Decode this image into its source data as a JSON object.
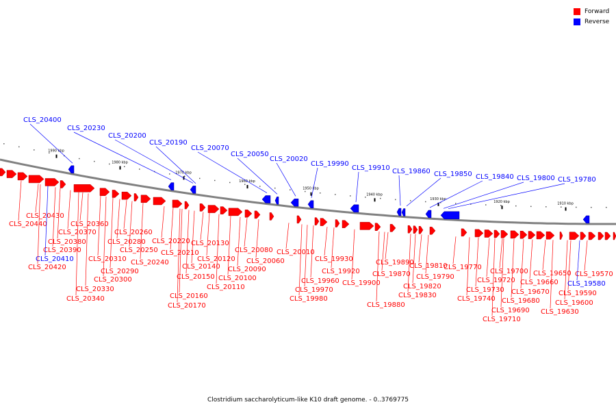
{
  "legend": {
    "forward": "Forward",
    "reverse": "Reverse"
  },
  "colors": {
    "forward": "#ff0000",
    "reverse": "#0000ff",
    "backbone": "#808080",
    "label_line_fwd": "#ff0000",
    "label_line_rev": "#0000ff"
  },
  "caption": "Clostridium saccharolyticum-like K10 draft genome. - 0..3769775",
  "scale": {
    "ticks": [
      "1990 kbp",
      "1980 kbp",
      "1970 kbp",
      "1960 kbp",
      "1950 kbp",
      "1940 kbp",
      "1930 kbp",
      "1920 kbp",
      "1910 kbp"
    ]
  },
  "reverse_labels": [
    "CLS_20400",
    "CLS_20230",
    "CLS_20200",
    "CLS_20190",
    "CLS_20070",
    "CLS_20050",
    "CLS_20020",
    "CLS_19990",
    "CLS_19910",
    "CLS_19860",
    "CLS_19850",
    "CLS_19840",
    "CLS_19800",
    "CLS_19780"
  ],
  "forward_labels": [
    "CLS_20430",
    "CLS_20440",
    "CLS_20360",
    "CLS_20370",
    "CLS_20380",
    "CLS_20390",
    "CLS_20410",
    "CLS_20420",
    "CLS_20310",
    "CLS_20290",
    "CLS_20300",
    "CLS_20330",
    "CLS_20340",
    "CLS_20260",
    "CLS_20280",
    "CLS_20250",
    "CLS_20240",
    "CLS_20220",
    "CLS_20210",
    "CLS_20130",
    "CLS_20140",
    "CLS_20150",
    "CLS_20160",
    "CLS_20170",
    "CLS_20120",
    "CLS_20110",
    "CLS_20100",
    "CLS_20090",
    "CLS_20080",
    "CLS_20060",
    "CLS_20010",
    "CLS_19930",
    "CLS_19920",
    "CLS_19960",
    "CLS_19970",
    "CLS_19980",
    "CLS_19890",
    "CLS_19900",
    "CLS_19870",
    "CLS_19880",
    "CLS_19810",
    "CLS_19790",
    "CLS_19820",
    "CLS_19830",
    "CLS_19770",
    "CLS_19700",
    "CLS_19720",
    "CLS_19730",
    "CLS_19740",
    "CLS_19690",
    "CLS_19710",
    "CLS_19680",
    "CLS_19670",
    "CLS_19660",
    "CLS_19650",
    "CLS_19630",
    "CLS_19600",
    "CLS_19590",
    "CLS_19570",
    "CLS_19580"
  ]
}
